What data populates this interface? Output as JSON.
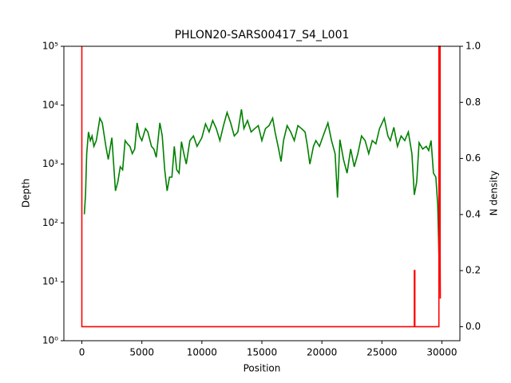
{
  "chart_data": {
    "type": "line",
    "title": "PHLON20-SARS00417_S4_L001",
    "xlabel": "Position",
    "ylabel": "Depth",
    "y2label": "N density",
    "xlim": [
      -1500,
      31500
    ],
    "xticks": [
      0,
      5000,
      10000,
      15000,
      20000,
      25000,
      30000
    ],
    "ylim": [
      1,
      100000
    ],
    "ylog": true,
    "yticks": [
      {
        "value": 1,
        "label": "10⁰"
      },
      {
        "value": 10,
        "label": "10¹"
      },
      {
        "value": 100,
        "label": "10²"
      },
      {
        "value": 1000,
        "label": "10³"
      },
      {
        "value": 10000,
        "label": "10⁴"
      },
      {
        "value": 100000,
        "label": "10⁵"
      }
    ],
    "y2lim": [
      -0.05,
      1.0
    ],
    "y2ticks": [
      {
        "value": 0,
        "label": "0.0"
      },
      {
        "value": 0.2,
        "label": "0.2"
      },
      {
        "value": 0.4,
        "label": "0.4"
      },
      {
        "value": 0.6,
        "label": "0.6"
      },
      {
        "value": 0.8,
        "label": "0.8"
      },
      {
        "value": 1,
        "label": "1.0"
      }
    ],
    "series": [
      {
        "name": "Depth",
        "color": "#008000",
        "x": [
          200,
          300,
          400,
          550,
          700,
          850,
          1000,
          1200,
          1500,
          1700,
          2000,
          2200,
          2500,
          2800,
          3000,
          3200,
          3400,
          3600,
          3800,
          4000,
          4200,
          4400,
          4600,
          4800,
          5000,
          5300,
          5500,
          5800,
          6000,
          6200,
          6500,
          6700,
          6900,
          7100,
          7300,
          7500,
          7700,
          7900,
          8100,
          8300,
          8500,
          8700,
          9000,
          9300,
          9600,
          10000,
          10300,
          10600,
          10900,
          11200,
          11500,
          11800,
          12100,
          12400,
          12700,
          13000,
          13300,
          13500,
          13800,
          14100,
          14400,
          14700,
          15000,
          15300,
          15600,
          15900,
          16100,
          16400,
          16600,
          16800,
          17100,
          17400,
          17700,
          18000,
          18300,
          18600,
          18800,
          19000,
          19300,
          19500,
          19800,
          20100,
          20500,
          20800,
          21100,
          21300,
          21500,
          21800,
          22100,
          22400,
          22700,
          23000,
          23300,
          23600,
          23900,
          24200,
          24500,
          24800,
          25200,
          25500,
          25700,
          26000,
          26300,
          26600,
          26900,
          27200,
          27500,
          27700,
          27900,
          28100,
          28400,
          28700,
          28900,
          29100,
          29300,
          29500,
          29650,
          29750,
          29830
        ],
        "values": [
          140,
          300,
          1500,
          3500,
          2500,
          3000,
          2000,
          2500,
          6000,
          5000,
          2000,
          1200,
          2800,
          350,
          500,
          900,
          800,
          2500,
          2200,
          2000,
          1500,
          1800,
          5000,
          3000,
          2500,
          4000,
          3500,
          2000,
          1800,
          1300,
          5000,
          3000,
          800,
          350,
          600,
          600,
          2000,
          800,
          700,
          2400,
          1500,
          1000,
          2500,
          3000,
          2000,
          2800,
          4800,
          3500,
          5500,
          4000,
          2500,
          4500,
          7500,
          5000,
          3000,
          3500,
          8500,
          4000,
          5500,
          3500,
          4000,
          4500,
          2500,
          4000,
          4500,
          6000,
          3500,
          1800,
          1100,
          2500,
          4500,
          3500,
          2500,
          4500,
          4000,
          3500,
          2000,
          1000,
          2000,
          2500,
          2000,
          3000,
          5000,
          2500,
          1500,
          270,
          2600,
          1200,
          700,
          1800,
          900,
          1500,
          3000,
          2500,
          1500,
          2500,
          2200,
          4000,
          6000,
          3000,
          2500,
          4200,
          2000,
          3000,
          2500,
          3500,
          1500,
          300,
          500,
          2300,
          1800,
          2000,
          1700,
          2500,
          700,
          600,
          200,
          30,
          15
        ]
      },
      {
        "name": "N density",
        "color": "#ff0000",
        "axis": "y2",
        "x": [
          0,
          0,
          27700,
          27700,
          27750,
          27750,
          29750,
          29750,
          29850,
          29850,
          29870
        ],
        "values": [
          1.0,
          0,
          0,
          0.2,
          0.2,
          0,
          0,
          1.0,
          1.0,
          0.25,
          0.1
        ]
      }
    ]
  }
}
